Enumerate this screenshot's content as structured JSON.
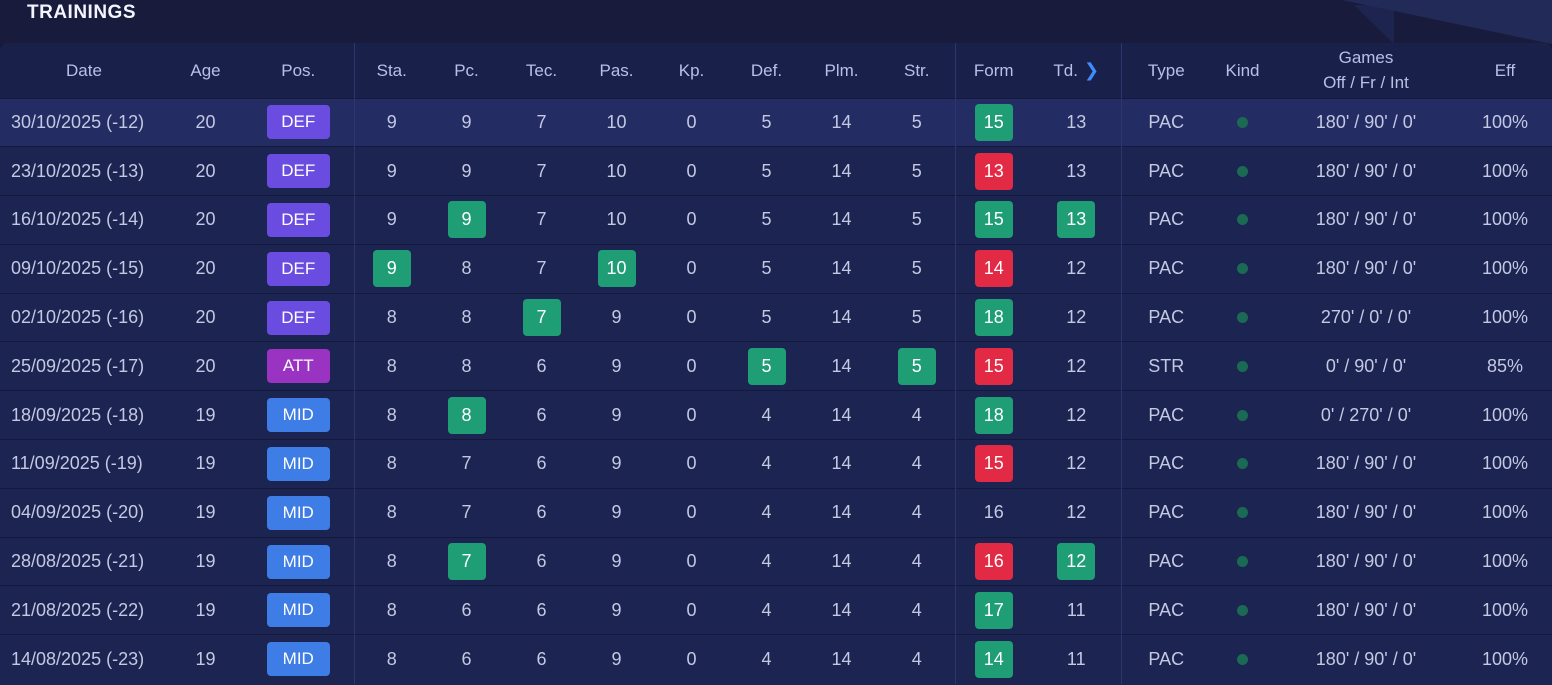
{
  "section": {
    "title": "TRAININGS"
  },
  "columns": {
    "date": "Date",
    "age": "Age",
    "pos": "Pos.",
    "sta": "Sta.",
    "pc": "Pc.",
    "tec": "Tec.",
    "pas": "Pas.",
    "kp": "Kp.",
    "def": "Def.",
    "plm": "Plm.",
    "str": "Str.",
    "form": "Form",
    "td": "Td.",
    "td_chevron": ">",
    "type": "Type",
    "kind": "Kind",
    "games_line1": "Games",
    "games_line2": "Off / Fr / Int",
    "eff": "Eff"
  },
  "colors": {
    "DEF": "#6a4de0",
    "ATT": "#9a32c2",
    "MID": "#3f7de6",
    "green": "#1f9e76",
    "red": "#e32a45",
    "kind_dot": "#1b6a53"
  },
  "rows": [
    {
      "date": "30/10/2025 (-12)",
      "age": "20",
      "pos": "DEF",
      "sta": {
        "v": "9"
      },
      "pc": {
        "v": "9"
      },
      "tec": {
        "v": "7"
      },
      "pas": {
        "v": "10"
      },
      "kp": {
        "v": "0"
      },
      "def": {
        "v": "5"
      },
      "plm": {
        "v": "14"
      },
      "str": {
        "v": "5"
      },
      "form": {
        "v": "15",
        "c": "green"
      },
      "td": {
        "v": "13"
      },
      "type": "PAC",
      "kind": "dot-icon",
      "games": "180' / 90' / 0'",
      "eff": "100%"
    },
    {
      "date": "23/10/2025 (-13)",
      "age": "20",
      "pos": "DEF",
      "sta": {
        "v": "9"
      },
      "pc": {
        "v": "9"
      },
      "tec": {
        "v": "7"
      },
      "pas": {
        "v": "10"
      },
      "kp": {
        "v": "0"
      },
      "def": {
        "v": "5"
      },
      "plm": {
        "v": "14"
      },
      "str": {
        "v": "5"
      },
      "form": {
        "v": "13",
        "c": "red"
      },
      "td": {
        "v": "13"
      },
      "type": "PAC",
      "kind": "dot-icon",
      "games": "180' / 90' / 0'",
      "eff": "100%"
    },
    {
      "date": "16/10/2025 (-14)",
      "age": "20",
      "pos": "DEF",
      "sta": {
        "v": "9"
      },
      "pc": {
        "v": "9",
        "c": "green"
      },
      "tec": {
        "v": "7"
      },
      "pas": {
        "v": "10"
      },
      "kp": {
        "v": "0"
      },
      "def": {
        "v": "5"
      },
      "plm": {
        "v": "14"
      },
      "str": {
        "v": "5"
      },
      "form": {
        "v": "15",
        "c": "green"
      },
      "td": {
        "v": "13",
        "c": "green"
      },
      "type": "PAC",
      "kind": "dot-icon",
      "games": "180' / 90' / 0'",
      "eff": "100%"
    },
    {
      "date": "09/10/2025 (-15)",
      "age": "20",
      "pos": "DEF",
      "sta": {
        "v": "9",
        "c": "green"
      },
      "pc": {
        "v": "8"
      },
      "tec": {
        "v": "7"
      },
      "pas": {
        "v": "10",
        "c": "green"
      },
      "kp": {
        "v": "0"
      },
      "def": {
        "v": "5"
      },
      "plm": {
        "v": "14"
      },
      "str": {
        "v": "5"
      },
      "form": {
        "v": "14",
        "c": "red"
      },
      "td": {
        "v": "12"
      },
      "type": "PAC",
      "kind": "dot-icon",
      "games": "180' / 90' / 0'",
      "eff": "100%"
    },
    {
      "date": "02/10/2025 (-16)",
      "age": "20",
      "pos": "DEF",
      "sta": {
        "v": "8"
      },
      "pc": {
        "v": "8"
      },
      "tec": {
        "v": "7",
        "c": "green"
      },
      "pas": {
        "v": "9"
      },
      "kp": {
        "v": "0"
      },
      "def": {
        "v": "5"
      },
      "plm": {
        "v": "14"
      },
      "str": {
        "v": "5"
      },
      "form": {
        "v": "18",
        "c": "green"
      },
      "td": {
        "v": "12"
      },
      "type": "PAC",
      "kind": "dot-icon",
      "games": "270' / 0' / 0'",
      "eff": "100%"
    },
    {
      "date": "25/09/2025 (-17)",
      "age": "20",
      "pos": "ATT",
      "sta": {
        "v": "8"
      },
      "pc": {
        "v": "8"
      },
      "tec": {
        "v": "6"
      },
      "pas": {
        "v": "9"
      },
      "kp": {
        "v": "0"
      },
      "def": {
        "v": "5",
        "c": "green"
      },
      "plm": {
        "v": "14"
      },
      "str": {
        "v": "5",
        "c": "green"
      },
      "form": {
        "v": "15",
        "c": "red"
      },
      "td": {
        "v": "12"
      },
      "type": "STR",
      "kind": "dot-icon",
      "games": "0' / 90' / 0'",
      "eff": "85%"
    },
    {
      "date": "18/09/2025 (-18)",
      "age": "19",
      "pos": "MID",
      "sta": {
        "v": "8"
      },
      "pc": {
        "v": "8",
        "c": "green"
      },
      "tec": {
        "v": "6"
      },
      "pas": {
        "v": "9"
      },
      "kp": {
        "v": "0"
      },
      "def": {
        "v": "4"
      },
      "plm": {
        "v": "14"
      },
      "str": {
        "v": "4"
      },
      "form": {
        "v": "18",
        "c": "green"
      },
      "td": {
        "v": "12"
      },
      "type": "PAC",
      "kind": "dot-icon",
      "games": "0' / 270' / 0'",
      "eff": "100%"
    },
    {
      "date": "11/09/2025 (-19)",
      "age": "19",
      "pos": "MID",
      "sta": {
        "v": "8"
      },
      "pc": {
        "v": "7"
      },
      "tec": {
        "v": "6"
      },
      "pas": {
        "v": "9"
      },
      "kp": {
        "v": "0"
      },
      "def": {
        "v": "4"
      },
      "plm": {
        "v": "14"
      },
      "str": {
        "v": "4"
      },
      "form": {
        "v": "15",
        "c": "red"
      },
      "td": {
        "v": "12"
      },
      "type": "PAC",
      "kind": "dot-icon",
      "games": "180' / 90' / 0'",
      "eff": "100%"
    },
    {
      "date": "04/09/2025 (-20)",
      "age": "19",
      "pos": "MID",
      "sta": {
        "v": "8"
      },
      "pc": {
        "v": "7"
      },
      "tec": {
        "v": "6"
      },
      "pas": {
        "v": "9"
      },
      "kp": {
        "v": "0"
      },
      "def": {
        "v": "4"
      },
      "plm": {
        "v": "14"
      },
      "str": {
        "v": "4"
      },
      "form": {
        "v": "16"
      },
      "td": {
        "v": "12"
      },
      "type": "PAC",
      "kind": "dot-icon",
      "games": "180' / 90' / 0'",
      "eff": "100%"
    },
    {
      "date": "28/08/2025 (-21)",
      "age": "19",
      "pos": "MID",
      "sta": {
        "v": "8"
      },
      "pc": {
        "v": "7",
        "c": "green"
      },
      "tec": {
        "v": "6"
      },
      "pas": {
        "v": "9"
      },
      "kp": {
        "v": "0"
      },
      "def": {
        "v": "4"
      },
      "plm": {
        "v": "14"
      },
      "str": {
        "v": "4"
      },
      "form": {
        "v": "16",
        "c": "red"
      },
      "td": {
        "v": "12",
        "c": "green"
      },
      "type": "PAC",
      "kind": "dot-icon",
      "games": "180' / 90' / 0'",
      "eff": "100%"
    },
    {
      "date": "21/08/2025 (-22)",
      "age": "19",
      "pos": "MID",
      "sta": {
        "v": "8"
      },
      "pc": {
        "v": "6"
      },
      "tec": {
        "v": "6"
      },
      "pas": {
        "v": "9"
      },
      "kp": {
        "v": "0"
      },
      "def": {
        "v": "4"
      },
      "plm": {
        "v": "14"
      },
      "str": {
        "v": "4"
      },
      "form": {
        "v": "17",
        "c": "green"
      },
      "td": {
        "v": "11"
      },
      "type": "PAC",
      "kind": "dot-icon",
      "games": "180' / 90' / 0'",
      "eff": "100%"
    },
    {
      "date": "14/08/2025 (-23)",
      "age": "19",
      "pos": "MID",
      "sta": {
        "v": "8"
      },
      "pc": {
        "v": "6"
      },
      "tec": {
        "v": "6"
      },
      "pas": {
        "v": "9"
      },
      "kp": {
        "v": "0"
      },
      "def": {
        "v": "4"
      },
      "plm": {
        "v": "14"
      },
      "str": {
        "v": "4"
      },
      "form": {
        "v": "14",
        "c": "green"
      },
      "td": {
        "v": "11"
      },
      "type": "PAC",
      "kind": "dot-icon",
      "games": "180' / 90' / 0'",
      "eff": "100%"
    }
  ]
}
